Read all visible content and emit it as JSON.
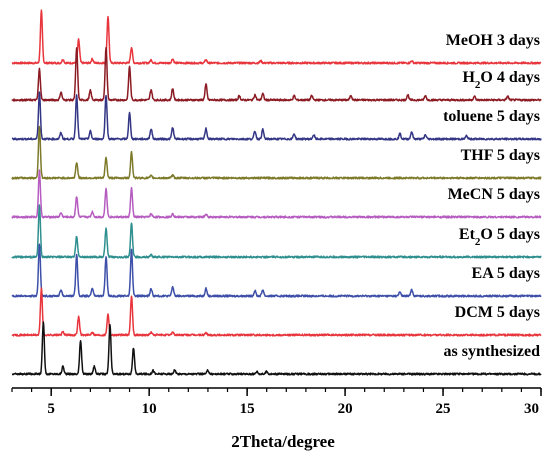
{
  "chart_data": {
    "type": "line",
    "xlabel": "2Theta/degree",
    "xlim": [
      3,
      30
    ],
    "x_ticks": [
      5,
      10,
      15,
      20,
      25,
      30
    ],
    "x_tick_labels": [
      "5",
      "10",
      "15",
      "20",
      "25",
      "30"
    ],
    "ylabel": "",
    "grid": false,
    "series": [
      {
        "name": "MeOH 3 days",
        "color": "#e8353c",
        "peaks": [
          {
            "x": 4.5,
            "y": 1.0
          },
          {
            "x": 5.6,
            "y": 0.07
          },
          {
            "x": 6.4,
            "y": 0.45
          },
          {
            "x": 7.1,
            "y": 0.08
          },
          {
            "x": 7.9,
            "y": 0.9
          },
          {
            "x": 9.1,
            "y": 0.3
          },
          {
            "x": 10.1,
            "y": 0.06
          },
          {
            "x": 11.2,
            "y": 0.08
          },
          {
            "x": 12.9,
            "y": 0.06
          },
          {
            "x": 15.7,
            "y": 0.04
          },
          {
            "x": 23.4,
            "y": 0.04
          }
        ]
      },
      {
        "name": "H2O 4 days",
        "name_main": "H",
        "name_sub": "2",
        "name_rest": "O 4 days",
        "color": "#8b1a22",
        "peaks": [
          {
            "x": 4.4,
            "y": 0.6
          },
          {
            "x": 5.5,
            "y": 0.15
          },
          {
            "x": 6.3,
            "y": 1.0
          },
          {
            "x": 7.0,
            "y": 0.18
          },
          {
            "x": 7.8,
            "y": 1.0
          },
          {
            "x": 9.0,
            "y": 0.65
          },
          {
            "x": 10.1,
            "y": 0.2
          },
          {
            "x": 11.2,
            "y": 0.22
          },
          {
            "x": 12.9,
            "y": 0.3
          },
          {
            "x": 14.6,
            "y": 0.08
          },
          {
            "x": 15.4,
            "y": 0.1
          },
          {
            "x": 15.8,
            "y": 0.12
          },
          {
            "x": 17.4,
            "y": 0.08
          },
          {
            "x": 18.3,
            "y": 0.08
          },
          {
            "x": 20.3,
            "y": 0.09
          },
          {
            "x": 23.2,
            "y": 0.1
          },
          {
            "x": 24.1,
            "y": 0.08
          },
          {
            "x": 26.6,
            "y": 0.07
          },
          {
            "x": 28.3,
            "y": 0.07
          }
        ]
      },
      {
        "name": "toluene 5 days",
        "color": "#333585",
        "peaks": [
          {
            "x": 4.4,
            "y": 0.9
          },
          {
            "x": 5.5,
            "y": 0.12
          },
          {
            "x": 6.3,
            "y": 0.85
          },
          {
            "x": 7.0,
            "y": 0.15
          },
          {
            "x": 7.8,
            "y": 0.85
          },
          {
            "x": 9.0,
            "y": 0.5
          },
          {
            "x": 10.1,
            "y": 0.2
          },
          {
            "x": 11.2,
            "y": 0.22
          },
          {
            "x": 12.9,
            "y": 0.2
          },
          {
            "x": 15.4,
            "y": 0.15
          },
          {
            "x": 15.8,
            "y": 0.18
          },
          {
            "x": 17.4,
            "y": 0.1
          },
          {
            "x": 18.4,
            "y": 0.08
          },
          {
            "x": 22.8,
            "y": 0.1
          },
          {
            "x": 23.4,
            "y": 0.14
          },
          {
            "x": 24.1,
            "y": 0.08
          },
          {
            "x": 26.2,
            "y": 0.06
          }
        ]
      },
      {
        "name": "THF 5 days",
        "color": "#7d7a2a",
        "peaks": [
          {
            "x": 4.4,
            "y": 1.0
          },
          {
            "x": 6.3,
            "y": 0.3
          },
          {
            "x": 7.8,
            "y": 0.4
          },
          {
            "x": 9.1,
            "y": 0.5
          },
          {
            "x": 10.1,
            "y": 0.04
          },
          {
            "x": 11.2,
            "y": 0.05
          }
        ]
      },
      {
        "name": "MeCN 5 days",
        "color": "#b65cc1",
        "peaks": [
          {
            "x": 4.4,
            "y": 0.9
          },
          {
            "x": 5.5,
            "y": 0.08
          },
          {
            "x": 6.3,
            "y": 0.4
          },
          {
            "x": 7.1,
            "y": 0.1
          },
          {
            "x": 7.8,
            "y": 0.55
          },
          {
            "x": 9.1,
            "y": 0.55
          },
          {
            "x": 10.1,
            "y": 0.06
          },
          {
            "x": 11.2,
            "y": 0.07
          },
          {
            "x": 12.9,
            "y": 0.05
          }
        ]
      },
      {
        "name": "Et2O 5 days",
        "name_main": "Et",
        "name_sub": "2",
        "name_rest": "O 5 days",
        "color": "#2f8f8f",
        "peaks": [
          {
            "x": 4.4,
            "y": 1.0
          },
          {
            "x": 6.3,
            "y": 0.4
          },
          {
            "x": 7.8,
            "y": 0.55
          },
          {
            "x": 9.1,
            "y": 0.65
          },
          {
            "x": 10.1,
            "y": 0.04
          }
        ]
      },
      {
        "name": "EA 5 days",
        "color": "#3d4fa8",
        "peaks": [
          {
            "x": 4.4,
            "y": 1.0
          },
          {
            "x": 5.5,
            "y": 0.12
          },
          {
            "x": 6.3,
            "y": 0.8
          },
          {
            "x": 7.1,
            "y": 0.15
          },
          {
            "x": 7.8,
            "y": 0.75
          },
          {
            "x": 9.1,
            "y": 0.9
          },
          {
            "x": 10.1,
            "y": 0.14
          },
          {
            "x": 11.2,
            "y": 0.18
          },
          {
            "x": 12.9,
            "y": 0.15
          },
          {
            "x": 15.4,
            "y": 0.1
          },
          {
            "x": 15.8,
            "y": 0.12
          },
          {
            "x": 22.8,
            "y": 0.08
          },
          {
            "x": 23.4,
            "y": 0.12
          }
        ]
      },
      {
        "name": "DCM 5 days",
        "color": "#e8353c",
        "peaks": [
          {
            "x": 4.5,
            "y": 0.9
          },
          {
            "x": 5.6,
            "y": 0.06
          },
          {
            "x": 6.4,
            "y": 0.35
          },
          {
            "x": 7.1,
            "y": 0.06
          },
          {
            "x": 7.9,
            "y": 0.4
          },
          {
            "x": 9.1,
            "y": 0.75
          },
          {
            "x": 10.1,
            "y": 0.05
          },
          {
            "x": 11.2,
            "y": 0.06
          },
          {
            "x": 12.9,
            "y": 0.04
          }
        ]
      },
      {
        "name": "as synthesized",
        "color": "#111111",
        "peaks": [
          {
            "x": 4.6,
            "y": 1.0
          },
          {
            "x": 5.6,
            "y": 0.15
          },
          {
            "x": 6.5,
            "y": 0.65
          },
          {
            "x": 7.2,
            "y": 0.15
          },
          {
            "x": 8.0,
            "y": 0.95
          },
          {
            "x": 9.2,
            "y": 0.5
          },
          {
            "x": 10.2,
            "y": 0.07
          },
          {
            "x": 11.3,
            "y": 0.08
          },
          {
            "x": 13.0,
            "y": 0.07
          },
          {
            "x": 15.5,
            "y": 0.05
          },
          {
            "x": 16.0,
            "y": 0.05
          }
        ]
      }
    ]
  }
}
